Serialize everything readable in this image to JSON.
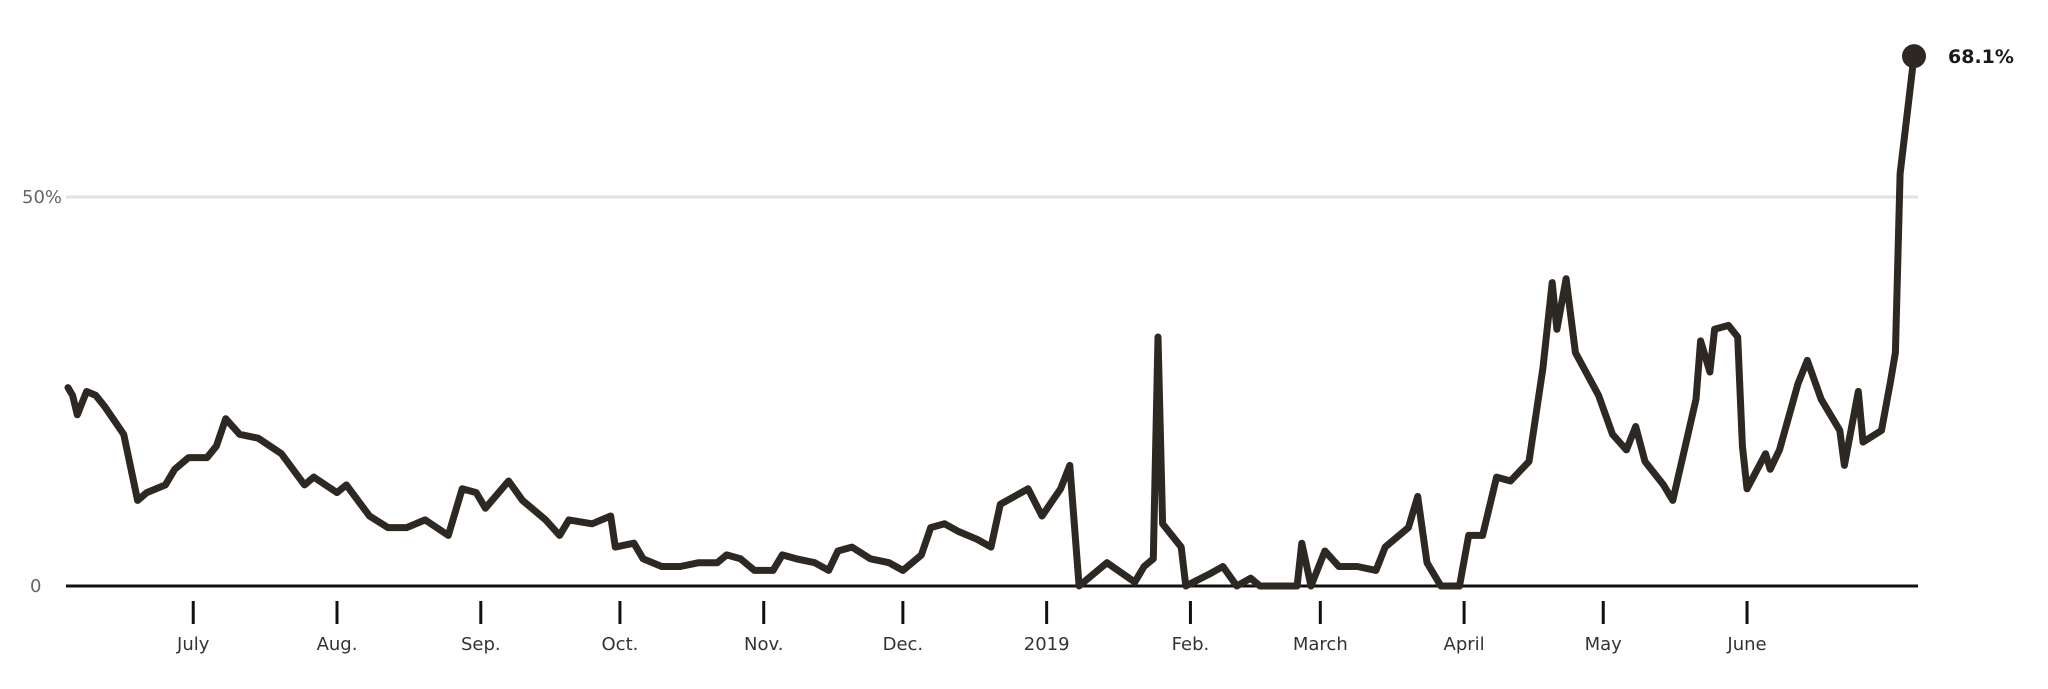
{
  "chart_data": {
    "type": "line",
    "title": "",
    "xlabel": "",
    "ylabel": "",
    "ylim": [
      0,
      70
    ],
    "grid": "horizontal at 50%",
    "colors": {
      "line": "#2e2822",
      "gridline": "#e2e2e2",
      "baseline": "#111111",
      "tick": "#111111"
    },
    "y_ticks": [
      {
        "value": 0,
        "label": "0"
      },
      {
        "value": 50,
        "label": "50%"
      }
    ],
    "x_ticks": [
      {
        "date": "2018-07-01",
        "label": "July"
      },
      {
        "date": "2018-08-01",
        "label": "Aug."
      },
      {
        "date": "2018-09-01",
        "label": "Sep."
      },
      {
        "date": "2018-10-01",
        "label": "Oct."
      },
      {
        "date": "2018-11-01",
        "label": "Nov."
      },
      {
        "date": "2018-12-01",
        "label": "Dec."
      },
      {
        "date": "2019-01-01",
        "label": "2019"
      },
      {
        "date": "2019-02-01",
        "label": "Feb."
      },
      {
        "date": "2019-03-01",
        "label": "March"
      },
      {
        "date": "2019-04-01",
        "label": "April"
      },
      {
        "date": "2019-05-01",
        "label": "May"
      },
      {
        "date": "2019-06-01",
        "label": "June"
      }
    ],
    "end_label": "68.1%",
    "series": [
      {
        "points": [
          [
            "2018-06-04",
            25.5
          ],
          [
            "2018-06-05",
            24.5
          ],
          [
            "2018-06-06",
            22.0
          ],
          [
            "2018-06-08",
            25.0
          ],
          [
            "2018-06-10",
            24.5
          ],
          [
            "2018-06-12",
            23.0
          ],
          [
            "2018-06-16",
            19.5
          ],
          [
            "2018-06-19",
            11.0
          ],
          [
            "2018-06-21",
            12.0
          ],
          [
            "2018-06-25",
            13.0
          ],
          [
            "2018-06-27",
            15.0
          ],
          [
            "2018-06-30",
            16.5
          ],
          [
            "2018-07-04",
            16.5
          ],
          [
            "2018-07-06",
            18.0
          ],
          [
            "2018-07-08",
            21.5
          ],
          [
            "2018-07-11",
            19.5
          ],
          [
            "2018-07-15",
            19.0
          ],
          [
            "2018-07-20",
            17.0
          ],
          [
            "2018-07-25",
            13.0
          ],
          [
            "2018-07-27",
            14.0
          ],
          [
            "2018-08-01",
            12.0
          ],
          [
            "2018-08-03",
            13.0
          ],
          [
            "2018-08-08",
            9.0
          ],
          [
            "2018-08-12",
            7.5
          ],
          [
            "2018-08-16",
            7.5
          ],
          [
            "2018-08-20",
            8.5
          ],
          [
            "2018-08-25",
            6.5
          ],
          [
            "2018-08-28",
            12.5
          ],
          [
            "2018-08-31",
            12.0
          ],
          [
            "2018-09-02",
            10.0
          ],
          [
            "2018-09-07",
            13.5
          ],
          [
            "2018-09-10",
            11.0
          ],
          [
            "2018-09-15",
            8.5
          ],
          [
            "2018-09-18",
            6.5
          ],
          [
            "2018-09-20",
            8.5
          ],
          [
            "2018-09-25",
            8.0
          ],
          [
            "2018-09-29",
            9.0
          ],
          [
            "2018-09-30",
            5.0
          ],
          [
            "2018-10-04",
            5.5
          ],
          [
            "2018-10-06",
            3.5
          ],
          [
            "2018-10-10",
            2.5
          ],
          [
            "2018-10-14",
            2.5
          ],
          [
            "2018-10-18",
            3.0
          ],
          [
            "2018-10-22",
            3.0
          ],
          [
            "2018-10-24",
            4.0
          ],
          [
            "2018-10-27",
            3.5
          ],
          [
            "2018-10-30",
            2.0
          ],
          [
            "2018-11-03",
            2.0
          ],
          [
            "2018-11-05",
            4.0
          ],
          [
            "2018-11-08",
            3.5
          ],
          [
            "2018-11-12",
            3.0
          ],
          [
            "2018-11-15",
            2.0
          ],
          [
            "2018-11-17",
            4.5
          ],
          [
            "2018-11-20",
            5.0
          ],
          [
            "2018-11-24",
            3.5
          ],
          [
            "2018-11-28",
            3.0
          ],
          [
            "2018-12-01",
            2.0
          ],
          [
            "2018-12-03",
            3.0
          ],
          [
            "2018-12-05",
            4.0
          ],
          [
            "2018-12-07",
            7.5
          ],
          [
            "2018-12-10",
            8.0
          ],
          [
            "2018-12-13",
            7.0
          ],
          [
            "2018-12-17",
            6.0
          ],
          [
            "2018-12-20",
            5.0
          ],
          [
            "2018-12-22",
            10.5
          ],
          [
            "2018-12-28",
            12.5
          ],
          [
            "2018-12-31",
            9.0
          ],
          [
            "2019-01-04",
            12.5
          ],
          [
            "2019-01-06",
            15.5
          ],
          [
            "2019-01-08",
            0.0
          ],
          [
            "2019-01-14",
            3.0
          ],
          [
            "2019-01-20",
            0.5
          ],
          [
            "2019-01-22",
            2.5
          ],
          [
            "2019-01-24",
            3.5
          ],
          [
            "2019-01-25",
            32.0
          ],
          [
            "2019-01-26",
            8.0
          ],
          [
            "2019-01-30",
            5.0
          ],
          [
            "2019-01-31",
            0.0
          ],
          [
            "2019-02-05",
            1.5
          ],
          [
            "2019-02-08",
            2.5
          ],
          [
            "2019-02-11",
            0.0
          ],
          [
            "2019-02-14",
            1.0
          ],
          [
            "2019-02-16",
            0.0
          ],
          [
            "2019-02-24",
            0.0
          ],
          [
            "2019-02-25",
            5.5
          ],
          [
            "2019-02-27",
            0.0
          ],
          [
            "2019-03-02",
            4.5
          ],
          [
            "2019-03-05",
            2.5
          ],
          [
            "2019-03-09",
            2.5
          ],
          [
            "2019-03-13",
            2.0
          ],
          [
            "2019-03-15",
            5.0
          ],
          [
            "2019-03-20",
            7.5
          ],
          [
            "2019-03-22",
            11.5
          ],
          [
            "2019-03-24",
            3.0
          ],
          [
            "2019-03-27",
            0.0
          ],
          [
            "2019-03-31",
            0.0
          ],
          [
            "2019-04-02",
            6.5
          ],
          [
            "2019-04-05",
            6.5
          ],
          [
            "2019-04-08",
            14.0
          ],
          [
            "2019-04-11",
            13.5
          ],
          [
            "2019-04-15",
            16.0
          ],
          [
            "2019-04-18",
            28.0
          ],
          [
            "2019-04-20",
            39.0
          ],
          [
            "2019-04-21",
            33.0
          ],
          [
            "2019-04-23",
            39.5
          ],
          [
            "2019-04-25",
            30.0
          ],
          [
            "2019-04-30",
            24.5
          ],
          [
            "2019-05-03",
            19.5
          ],
          [
            "2019-05-06",
            17.5
          ],
          [
            "2019-05-08",
            20.5
          ],
          [
            "2019-05-10",
            16.0
          ],
          [
            "2019-05-14",
            13.0
          ],
          [
            "2019-05-16",
            11.0
          ],
          [
            "2019-05-21",
            24.0
          ],
          [
            "2019-05-22",
            31.5
          ],
          [
            "2019-05-24",
            27.5
          ],
          [
            "2019-05-25",
            33.0
          ],
          [
            "2019-05-28",
            33.5
          ],
          [
            "2019-05-30",
            32.0
          ],
          [
            "2019-05-31",
            18.0
          ],
          [
            "2019-06-01",
            12.5
          ],
          [
            "2019-06-05",
            17.0
          ],
          [
            "2019-06-06",
            15.0
          ],
          [
            "2019-06-08",
            17.5
          ],
          [
            "2019-06-12",
            26.0
          ],
          [
            "2019-06-14",
            29.0
          ],
          [
            "2019-06-17",
            24.0
          ],
          [
            "2019-06-21",
            20.0
          ],
          [
            "2019-06-22",
            15.5
          ],
          [
            "2019-06-25",
            25.0
          ],
          [
            "2019-06-26",
            18.5
          ],
          [
            "2019-06-30",
            20.0
          ],
          [
            "2019-07-02",
            26.5
          ],
          [
            "2019-07-03",
            30.0
          ],
          [
            "2019-07-04",
            53.0
          ],
          [
            "2019-07-07",
            68.1
          ]
        ]
      }
    ]
  }
}
